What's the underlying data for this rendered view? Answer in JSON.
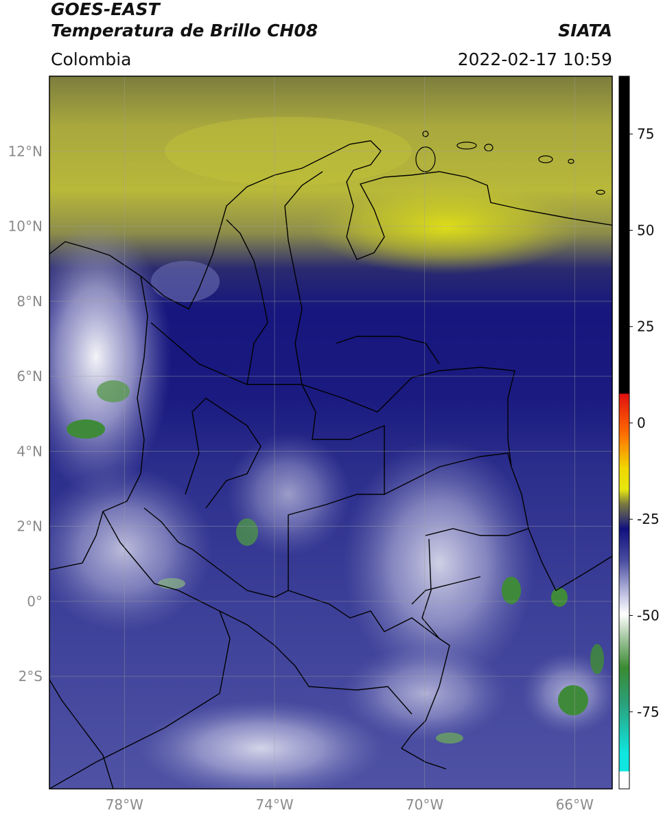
{
  "header": {
    "satellite": "GOES-EAST",
    "product": "Temperatura de Brillo CH08",
    "region": "Colombia",
    "brand": "SIATA",
    "timestamp": "2022-02-17 10:59"
  },
  "map": {
    "lon_range": [
      -80,
      -65
    ],
    "lat_range": [
      -5,
      14
    ],
    "lat_ticks": [
      {
        "value": 12,
        "label": "12°N"
      },
      {
        "value": 10,
        "label": "10°N"
      },
      {
        "value": 8,
        "label": "8°N"
      },
      {
        "value": 6,
        "label": "6°N"
      },
      {
        "value": 4,
        "label": "4°N"
      },
      {
        "value": 2,
        "label": "2°N"
      },
      {
        "value": 0,
        "label": "0°"
      },
      {
        "value": -2,
        "label": "2°S"
      }
    ],
    "lon_ticks": [
      {
        "value": -78,
        "label": "78°W"
      },
      {
        "value": -74,
        "label": "74°W"
      },
      {
        "value": -70,
        "label": "70°W"
      },
      {
        "value": -66,
        "label": "66°W"
      }
    ],
    "colors": {
      "warm_yellow": "#b4b43a",
      "dark_blue": "#14147e",
      "mid_blue": "#3c3f9a",
      "cloud_white": "#f2f2fa",
      "cold_green": "#3f8a3a",
      "border": "#000000"
    }
  },
  "colorbar": {
    "ticks": [
      {
        "value": 75,
        "label": "75"
      },
      {
        "value": 50,
        "label": "50"
      },
      {
        "value": 25,
        "label": "25"
      },
      {
        "value": 0,
        "label": "0"
      },
      {
        "value": -25,
        "label": "-25"
      },
      {
        "value": -50,
        "label": "-50"
      },
      {
        "value": -75,
        "label": "-75"
      }
    ],
    "range": [
      -95,
      90
    ]
  }
}
